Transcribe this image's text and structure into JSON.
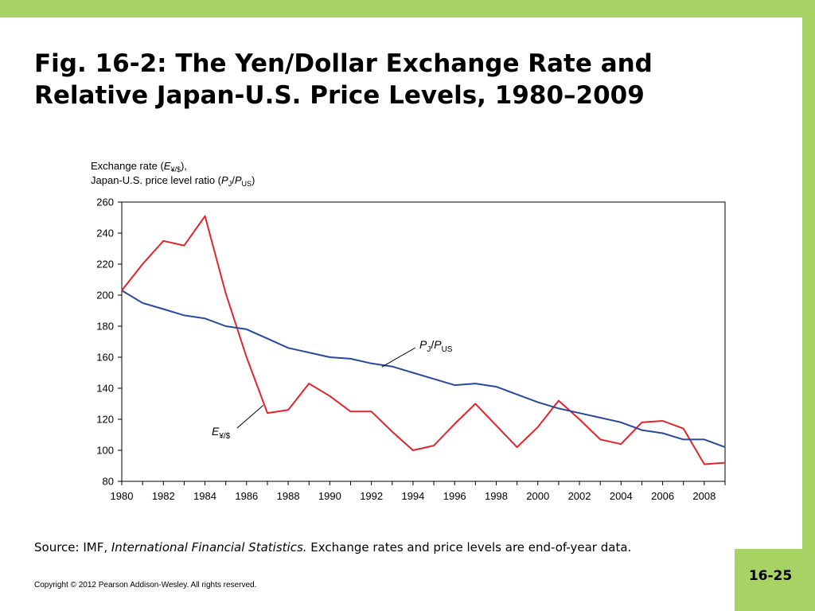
{
  "slide": {
    "title_line1": "Fig. 16-2: The Yen/Dollar Exchange Rate and",
    "title_line2": "Relative Japan-U.S. Price Levels, 1980–2009",
    "source_prefix": "Source: IMF, ",
    "source_italic": "International Financial Statistics.",
    "source_rest": " Exchange rates and price levels are end-of-year data.",
    "copyright": "Copyright © 2012 Pearson Addison-Wesley. All rights reserved.",
    "page_number": "16-25",
    "accent_color": "#a7d264"
  },
  "chart_data": {
    "type": "line",
    "ylabel_line1": "Exchange rate (E¥/$),",
    "ylabel_line2": "Japan-U.S. price level ratio (PJ/PUS)",
    "xlim": [
      1980,
      2009
    ],
    "ylim": [
      80,
      260
    ],
    "y_ticks": [
      80,
      100,
      120,
      140,
      160,
      180,
      200,
      220,
      240,
      260
    ],
    "x_ticks": [
      1980,
      1982,
      1984,
      1986,
      1988,
      1990,
      1992,
      1994,
      1996,
      1998,
      2000,
      2002,
      2004,
      2006,
      2008
    ],
    "grid": false,
    "x": [
      1980,
      1981,
      1982,
      1983,
      1984,
      1985,
      1986,
      1987,
      1988,
      1989,
      1990,
      1991,
      1992,
      1993,
      1994,
      1995,
      1996,
      1997,
      1998,
      1999,
      2000,
      2001,
      2002,
      2003,
      2004,
      2005,
      2006,
      2007,
      2008,
      2009
    ],
    "series": [
      {
        "name": "E¥/$",
        "color": "#e3242b",
        "values": [
          203,
          220,
          235,
          232,
          251,
          201,
          160,
          124,
          126,
          143,
          135,
          125,
          125,
          112,
          100,
          103,
          117,
          130,
          116,
          102,
          115,
          132,
          120,
          107,
          104,
          118,
          119,
          114,
          91,
          92
        ]
      },
      {
        "name": "PJ/PUS",
        "color": "#27489c",
        "values": [
          203,
          195,
          191,
          187,
          185,
          180,
          178,
          172,
          166,
          163,
          160,
          159,
          156,
          154,
          150,
          146,
          142,
          143,
          141,
          136,
          131,
          127,
          124,
          121,
          118,
          113,
          111,
          107,
          107,
          102
        ]
      }
    ]
  }
}
